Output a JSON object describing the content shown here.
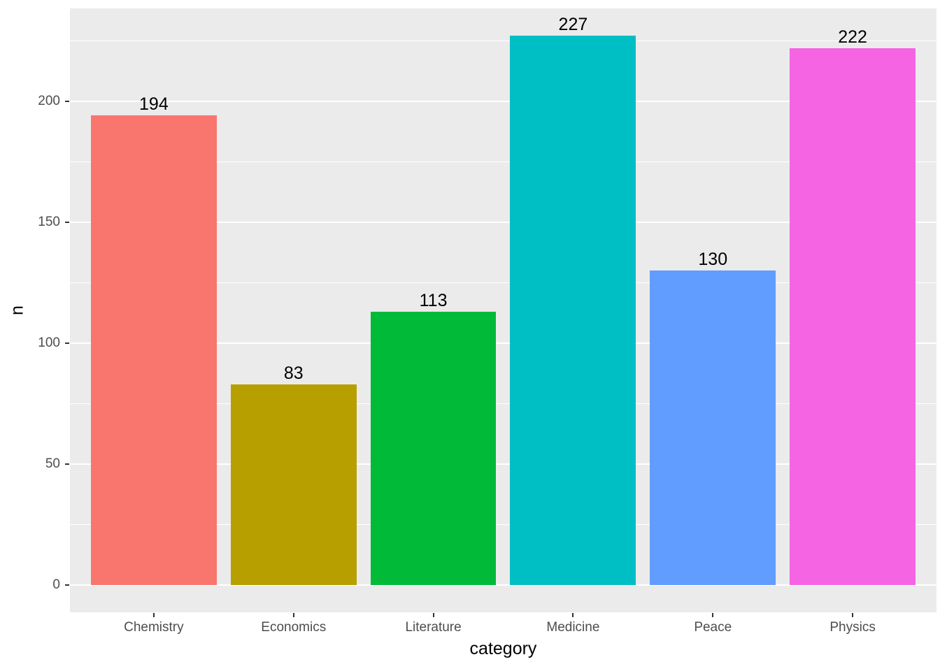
{
  "chart_data": {
    "type": "bar",
    "title": "",
    "xlabel": "category",
    "ylabel": "n",
    "categories": [
      "Chemistry",
      "Economics",
      "Literature",
      "Medicine",
      "Peace",
      "Physics"
    ],
    "values": [
      194,
      83,
      113,
      227,
      130,
      222
    ],
    "bar_labels": [
      "194",
      "83",
      "113",
      "227",
      "130",
      "222"
    ],
    "bar_colors": [
      "#F8766D",
      "#B79F00",
      "#00BA38",
      "#00BFC4",
      "#619CFF",
      "#F564E3"
    ],
    "y_ticks": [
      0,
      50,
      100,
      150,
      200
    ],
    "y_minor_ticks": [
      25,
      75,
      125,
      175,
      225
    ],
    "ylim": [
      -11.35,
      238.35
    ],
    "bar_width_ratio": 0.9,
    "x_expand": 0.6,
    "grid": "horizontal major and minor gridlines, white on grey panel",
    "legend_position": "none",
    "colors": {
      "figure_background": "#FFFFFF",
      "panel_background": "#EBEBEB",
      "grid_major": "#FFFFFF",
      "grid_minor": "#FFFFFF",
      "tick_mark": "#333333",
      "axis_text": "#4D4D4D",
      "axis_title": "#000000",
      "value_label": "#000000"
    }
  }
}
